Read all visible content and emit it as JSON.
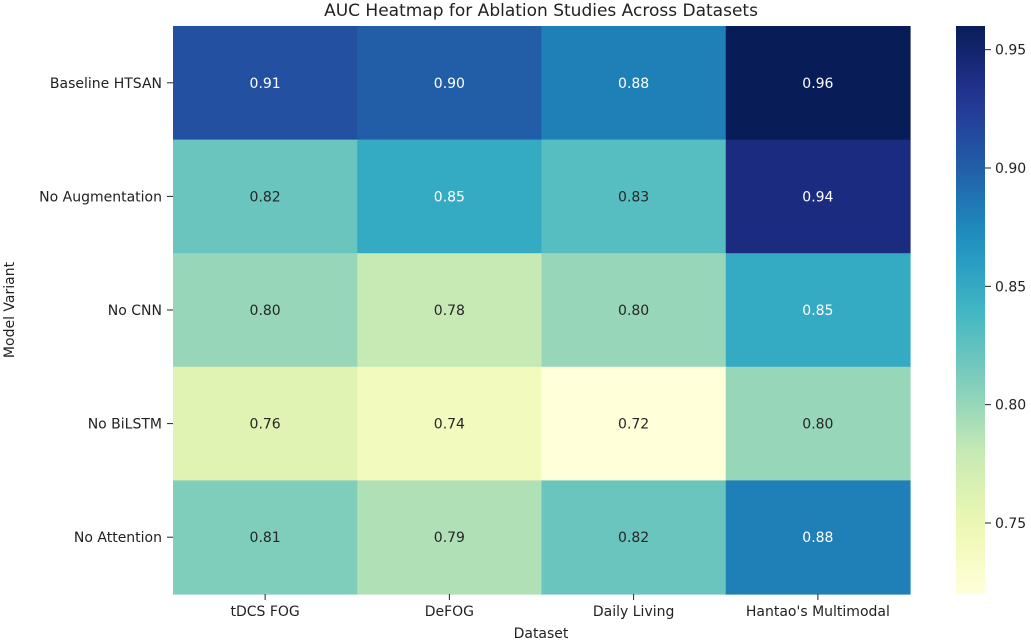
{
  "chart_data": {
    "type": "heatmap",
    "title": "AUC Heatmap for Ablation Studies Across Datasets",
    "xlabel": "Dataset",
    "ylabel": "Model Variant",
    "columns": [
      "tDCS FOG",
      "DeFOG",
      "Daily Living",
      "Hantao's Multimodal"
    ],
    "rows": [
      "Baseline HTSAN",
      "No Augmentation",
      "No CNN",
      "No BiLSTM",
      "No Attention"
    ],
    "values": [
      [
        0.91,
        0.9,
        0.88,
        0.96
      ],
      [
        0.82,
        0.85,
        0.83,
        0.94
      ],
      [
        0.8,
        0.78,
        0.8,
        0.85
      ],
      [
        0.76,
        0.74,
        0.72,
        0.8
      ],
      [
        0.81,
        0.79,
        0.82,
        0.88
      ]
    ],
    "value_labels": [
      [
        "0.91",
        "0.90",
        "0.88",
        "0.96"
      ],
      [
        "0.82",
        "0.85",
        "0.83",
        "0.94"
      ],
      [
        "0.80",
        "0.78",
        "0.80",
        "0.85"
      ],
      [
        "0.76",
        "0.74",
        "0.72",
        "0.80"
      ],
      [
        "0.81",
        "0.79",
        "0.82",
        "0.88"
      ]
    ],
    "colormap": "YlGnBu",
    "colorbar": {
      "vmin": 0.72,
      "vmax": 0.96,
      "ticks": [
        0.75,
        0.8,
        0.85,
        0.9,
        0.95
      ],
      "tick_labels": [
        "0.75",
        "0.80",
        "0.85",
        "0.90",
        "0.95"
      ]
    }
  }
}
